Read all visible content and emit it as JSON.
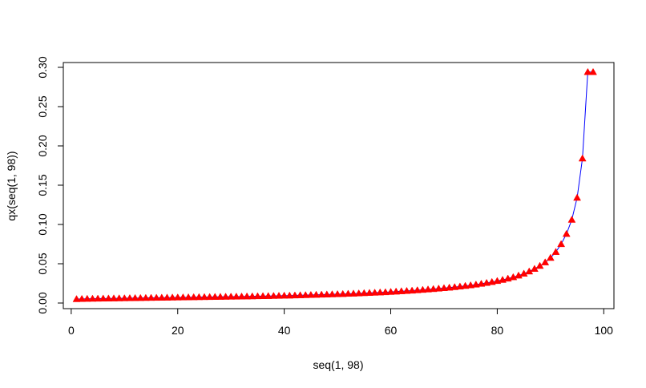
{
  "chart_data": {
    "type": "line",
    "xlabel": "seq(1, 98)",
    "ylabel": "qx(seq(1, 98))",
    "xlim": [
      1,
      98
    ],
    "ylim": [
      0,
      0.3
    ],
    "xticks": [
      0,
      20,
      40,
      60,
      80,
      100
    ],
    "xtick_labels": [
      "0",
      "20",
      "40",
      "60",
      "80",
      "100"
    ],
    "yticks": [
      0,
      0.05,
      0.1,
      0.15,
      0.2,
      0.25,
      0.3
    ],
    "ytick_labels": [
      "0.00",
      "0.05",
      "0.10",
      "0.15",
      "0.20",
      "0.25",
      "0.30"
    ],
    "grid": false,
    "series": [
      {
        "style": "line+points",
        "line_color": "#0000ff",
        "marker": "triangle",
        "marker_color": "#ff0000",
        "x": [
          1,
          2,
          3,
          4,
          5,
          6,
          7,
          8,
          9,
          10,
          11,
          12,
          13,
          14,
          15,
          16,
          17,
          18,
          19,
          20,
          21,
          22,
          23,
          24,
          25,
          26,
          27,
          28,
          29,
          30,
          31,
          32,
          33,
          34,
          35,
          36,
          37,
          38,
          39,
          40,
          41,
          42,
          43,
          44,
          45,
          46,
          47,
          48,
          49,
          50,
          51,
          52,
          53,
          54,
          55,
          56,
          57,
          58,
          59,
          60,
          61,
          62,
          63,
          64,
          65,
          66,
          67,
          68,
          69,
          70,
          71,
          72,
          73,
          74,
          75,
          76,
          77,
          78,
          79,
          80,
          81,
          82,
          83,
          84,
          85,
          86,
          87,
          88,
          89,
          90,
          91,
          92,
          93,
          94,
          95,
          96,
          97,
          98
        ],
        "y": [
          0.005,
          0.0052,
          0.0054,
          0.0055,
          0.0056,
          0.0057,
          0.0058,
          0.0059,
          0.006,
          0.0061,
          0.0062,
          0.0063,
          0.0064,
          0.0065,
          0.0066,
          0.0067,
          0.0068,
          0.0069,
          0.007,
          0.0071,
          0.0072,
          0.0073,
          0.0074,
          0.0075,
          0.0076,
          0.0077,
          0.0078,
          0.0079,
          0.008,
          0.0081,
          0.0082,
          0.0083,
          0.0084,
          0.0085,
          0.0087,
          0.0088,
          0.0089,
          0.0091,
          0.0092,
          0.0094,
          0.0095,
          0.0097,
          0.0099,
          0.0101,
          0.0103,
          0.0105,
          0.0107,
          0.0109,
          0.0111,
          0.0113,
          0.0115,
          0.0118,
          0.012,
          0.0123,
          0.0126,
          0.0129,
          0.0132,
          0.0135,
          0.0138,
          0.0142,
          0.0146,
          0.015,
          0.0154,
          0.0158,
          0.0163,
          0.0168,
          0.0173,
          0.0178,
          0.0184,
          0.019,
          0.0196,
          0.0203,
          0.021,
          0.0218,
          0.0226,
          0.0235,
          0.0245,
          0.0256,
          0.0268,
          0.0281,
          0.0295,
          0.0311,
          0.0329,
          0.035,
          0.0374,
          0.0402,
          0.0435,
          0.0473,
          0.0518,
          0.0575,
          0.065,
          0.075,
          0.088,
          0.106,
          0.134,
          0.184,
          0.294,
          0.294
        ]
      }
    ]
  }
}
